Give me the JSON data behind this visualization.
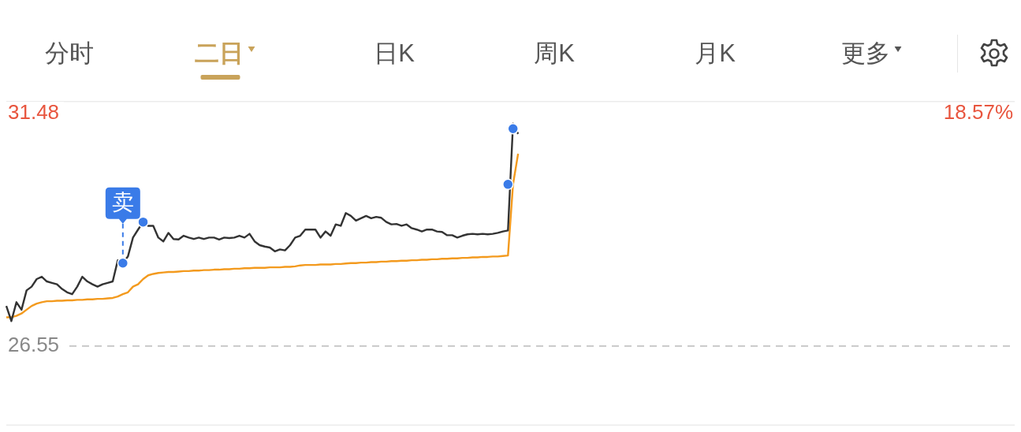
{
  "chart_data": {
    "type": "line",
    "annotations": [
      "分时",
      "二日",
      "日K",
      "周K",
      "月K",
      "更多",
      {
        "text": "卖",
        "y": 28.31
      },
      "18.57%"
    ],
    "categories": [
      null,
      null,
      null,
      null,
      null,
      null,
      null,
      null,
      null,
      null,
      null,
      null,
      null,
      null,
      null,
      null,
      null,
      null,
      null,
      null,
      null,
      null,
      null,
      null,
      null,
      null,
      null,
      null,
      null,
      null,
      null,
      null,
      null,
      null,
      null,
      null,
      null,
      null,
      null,
      null,
      null,
      null,
      null,
      null,
      null,
      null,
      null,
      null,
      null,
      null,
      null,
      null,
      null,
      null,
      null,
      null,
      null,
      null,
      null,
      null,
      null,
      null,
      null,
      null,
      null,
      null,
      null,
      null,
      null,
      null,
      null,
      null,
      null,
      null,
      null,
      null,
      null,
      null,
      null,
      null,
      null,
      null,
      null,
      null,
      null,
      null,
      null,
      null,
      null,
      null,
      null,
      null,
      null,
      null,
      null,
      null,
      null,
      null,
      null,
      null,
      null,
      null,
      null,
      null,
      null,
      null,
      null,
      null,
      null,
      null,
      null,
      null,
      null,
      null,
      null,
      null,
      null,
      null,
      null,
      null,
      null,
      null,
      null,
      null,
      null,
      null,
      null,
      null,
      null,
      null,
      null,
      null,
      null,
      null,
      null,
      null,
      null,
      null,
      null,
      null,
      null,
      null,
      null,
      null,
      null,
      null,
      null,
      null,
      null,
      null,
      null,
      null,
      null,
      null,
      null,
      null,
      null,
      null,
      null,
      null,
      null,
      null,
      null,
      null,
      null,
      null,
      null,
      null,
      null,
      null,
      null,
      null,
      null,
      null,
      null,
      null,
      null,
      null,
      null,
      null,
      null,
      null,
      null,
      null,
      null,
      null,
      null,
      null,
      null,
      null,
      null,
      null,
      null,
      null,
      null,
      null,
      null,
      null,
      null,
      null
    ],
    "series": [
      {
        "color": "#333333",
        "values": [
          27.4,
          27.08,
          27.48,
          27.32,
          27.73,
          27.81,
          27.97,
          28.02,
          27.92,
          27.89,
          27.86,
          27.76,
          27.69,
          27.65,
          27.81,
          28.02,
          27.92,
          27.86,
          27.81,
          27.86,
          27.89,
          27.92,
          28.37,
          28.31,
          28.45,
          28.85,
          29.02,
          29.18,
          29.1,
          29.1,
          28.85,
          28.77,
          28.95,
          28.82,
          28.81,
          28.89,
          28.85,
          28.82,
          28.85,
          28.82,
          28.85,
          28.85,
          28.81,
          28.85,
          28.84,
          28.85,
          28.89,
          28.85,
          28.93,
          28.77,
          28.69,
          28.66,
          28.64,
          28.56,
          28.6,
          28.58,
          28.69,
          28.85,
          28.89,
          29.02,
          29.02,
          29.02,
          28.85,
          28.98,
          28.89,
          29.13,
          29.1,
          29.37,
          29.31,
          29.21,
          29.26,
          29.31,
          29.26,
          29.29,
          29.27,
          29.18,
          29.13,
          29.14,
          29.1,
          29.13,
          29.05,
          29.02,
          28.98,
          29.02,
          29.02,
          28.98,
          28.97,
          28.9,
          28.9,
          28.85,
          28.89,
          28.92,
          28.93,
          28.92,
          28.93,
          28.92,
          28.93,
          28.95,
          28.98,
          29.0,
          31.27,
          31.05,
          null,
          null,
          null,
          null,
          null,
          null,
          null,
          null,
          null,
          null,
          null,
          null,
          null,
          null,
          null,
          null,
          null,
          null,
          null,
          null,
          null,
          null,
          null,
          null,
          null,
          null,
          null,
          null,
          null,
          null,
          null,
          null,
          null,
          null,
          null,
          null,
          null,
          null,
          null,
          null,
          null,
          null,
          null,
          null,
          null,
          null,
          null,
          null,
          null,
          null,
          null,
          null,
          null,
          null,
          null,
          null,
          null,
          null,
          null,
          null,
          null,
          null,
          null,
          null,
          null,
          null,
          null,
          null,
          null,
          null,
          null,
          null,
          null,
          null,
          null,
          null,
          null,
          null,
          null,
          null,
          null,
          null,
          null,
          null,
          null,
          null,
          null,
          null,
          null,
          null,
          null,
          null,
          null,
          null,
          null,
          null,
          null,
          null
        ]
      },
      {
        "color": "#f39a1e",
        "values": [
          27.16,
          27.16,
          27.19,
          27.24,
          27.32,
          27.4,
          27.45,
          27.48,
          27.5,
          27.5,
          27.51,
          27.51,
          27.52,
          27.52,
          27.53,
          27.53,
          27.54,
          27.54,
          27.55,
          27.55,
          27.56,
          27.57,
          27.6,
          27.65,
          27.69,
          27.81,
          27.86,
          27.97,
          28.05,
          28.08,
          28.1,
          28.11,
          28.12,
          28.12,
          28.13,
          28.14,
          28.14,
          28.15,
          28.15,
          28.16,
          28.16,
          28.17,
          28.17,
          28.18,
          28.18,
          28.19,
          28.19,
          28.2,
          28.2,
          28.21,
          28.21,
          28.21,
          28.22,
          28.22,
          28.22,
          28.23,
          28.23,
          28.24,
          28.26,
          28.27,
          28.27,
          28.27,
          28.28,
          28.28,
          28.28,
          28.29,
          28.29,
          28.3,
          28.31,
          28.31,
          28.32,
          28.32,
          28.33,
          28.33,
          28.34,
          28.34,
          28.35,
          28.35,
          28.36,
          28.36,
          28.37,
          28.37,
          28.38,
          28.38,
          28.39,
          28.39,
          28.4,
          28.4,
          28.41,
          28.41,
          28.42,
          28.42,
          28.43,
          28.43,
          28.44,
          28.44,
          28.45,
          28.45,
          28.46,
          28.47,
          29.98,
          30.63,
          null,
          null,
          null,
          null,
          null,
          null,
          null,
          null,
          null,
          null,
          null,
          null,
          null,
          null,
          null,
          null,
          null,
          null,
          null,
          null,
          null,
          null,
          null,
          null,
          null,
          null,
          null,
          null,
          null,
          null,
          null,
          null,
          null,
          null,
          null,
          null,
          null,
          null,
          null,
          null,
          null,
          null,
          null,
          null,
          null,
          null,
          null,
          null,
          null,
          null,
          null,
          null,
          null,
          null,
          null,
          null,
          null,
          null,
          null,
          null,
          null,
          null,
          null,
          null,
          null,
          null,
          null,
          null,
          null,
          null,
          null,
          null,
          null,
          null,
          null,
          null,
          null,
          null,
          null,
          null,
          null,
          null,
          null,
          null,
          null,
          null,
          null,
          null,
          null,
          null,
          null,
          null,
          null,
          null,
          null,
          null,
          null,
          null
        ]
      },
      {
        "type": "scatter",
        "color": "#3a7be8",
        "values": [
          null,
          null,
          null,
          null,
          null,
          null,
          null,
          null,
          null,
          null,
          null,
          null,
          null,
          null,
          null,
          null,
          null,
          null,
          null,
          null,
          null,
          null,
          null,
          28.31,
          null,
          null,
          null,
          29.18,
          null,
          null,
          null,
          null,
          null,
          null,
          null,
          null,
          null,
          null,
          null,
          null,
          null,
          null,
          null,
          null,
          null,
          null,
          null,
          null,
          null,
          null,
          null,
          null,
          null,
          null,
          null,
          null,
          null,
          null,
          null,
          null,
          null,
          null,
          null,
          null,
          null,
          null,
          null,
          null,
          null,
          null,
          null,
          null,
          null,
          null,
          null,
          null,
          null,
          null,
          null,
          null,
          null,
          null,
          null,
          null,
          null,
          null,
          null,
          null,
          null,
          null,
          null,
          null,
          null,
          null,
          null,
          null,
          null,
          null,
          null,
          29.98,
          31.16,
          null,
          null,
          null,
          null,
          null,
          null,
          null,
          null,
          null,
          null,
          null,
          null,
          null,
          null,
          null,
          null,
          null,
          null,
          null,
          null,
          null,
          null,
          null,
          null,
          null,
          null,
          null,
          null,
          null,
          null,
          null,
          null,
          null,
          null,
          null,
          null,
          null,
          null,
          null,
          null,
          null,
          null,
          null,
          null,
          null,
          null,
          null,
          null,
          null,
          null,
          null,
          null,
          null,
          null,
          null,
          null,
          null,
          null,
          null,
          null,
          null,
          null,
          null,
          null,
          null,
          null,
          null,
          null,
          null,
          null,
          null,
          null,
          null,
          null,
          null,
          null,
          null,
          null,
          null,
          null,
          null,
          null,
          null,
          null,
          null,
          null,
          null,
          null,
          null,
          null,
          null,
          null,
          null,
          null,
          null,
          null,
          null,
          null,
          null
        ]
      }
    ],
    "ylim": [
      24.86,
      31.75
    ],
    "yticks": [
      31.48,
      26.55
    ],
    "ref_lines": [
      {
        "axis": "y",
        "value": 26.55,
        "color": "#bbbbbb",
        "line_style": "dashed"
      }
    ],
    "grid": false,
    "legend": false
  }
}
